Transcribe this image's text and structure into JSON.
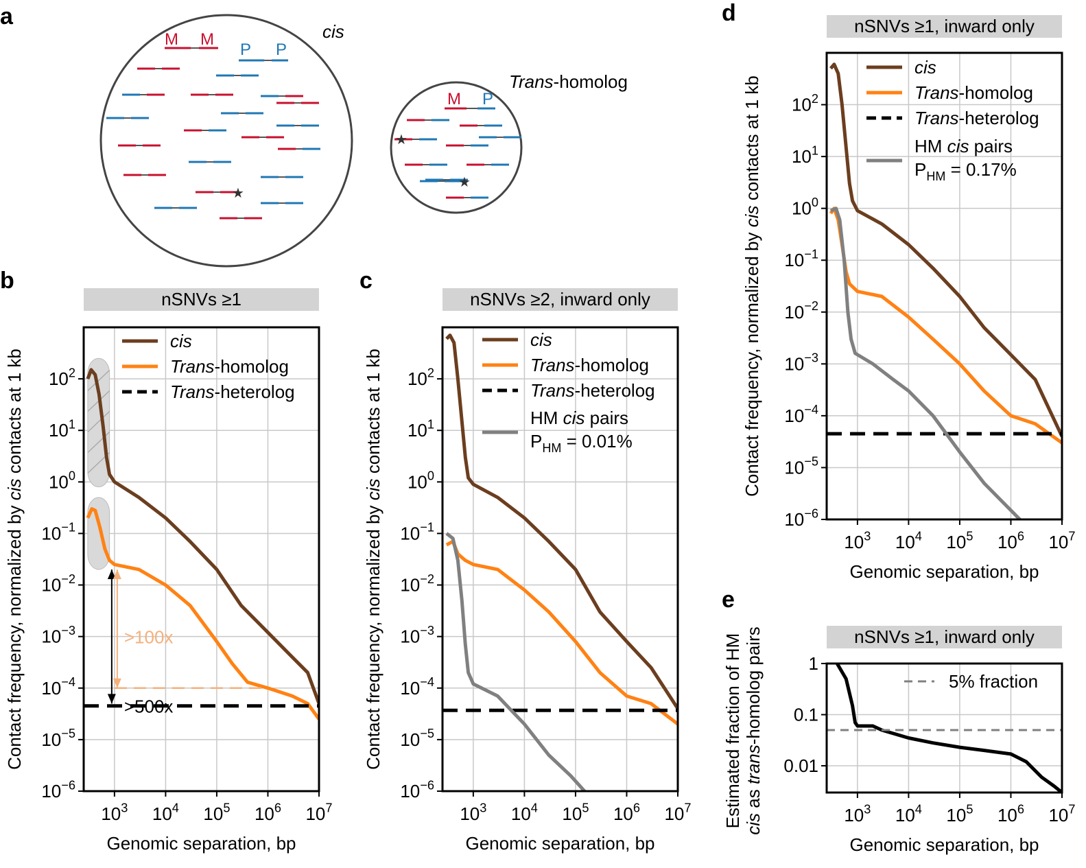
{
  "panel_letters": {
    "a": "a",
    "b": "b",
    "c": "c",
    "d": "d",
    "e": "e"
  },
  "panel_a": {
    "cis_label": "cis",
    "trans_label_italic": "Trans",
    "trans_label_rest": "-homolog",
    "m": "M",
    "p": "P"
  },
  "colors": {
    "cis": "#6b3e1f",
    "trans": "#ff8214",
    "hetero": "#000000",
    "hm": "#808080",
    "maternal": "#c8102e",
    "paternal": "#1f77b4",
    "grid": "#c8c8c8",
    "titlebar": "#d3d3d3"
  },
  "axis_text": {
    "ylabel_pre": "Contact frequency, normalized by ",
    "ylabel_it": "cis",
    "ylabel_post": " contacts at 1 kb",
    "xlabel": "Genomic separation, bp",
    "ylabel_e_line1": "Estimated fraction of HM",
    "ylabel_e_line2_it1": "cis",
    "ylabel_e_line2_mid": " as ",
    "ylabel_e_line2_it2": "trans",
    "ylabel_e_line2_post": "-homolog pairs"
  },
  "legend_text": {
    "cis": "cis",
    "trans_it": "Trans",
    "trans_rest": "-homolog",
    "hetero_it": "Trans",
    "hetero_rest": "-heterolog",
    "hm_pre": "HM ",
    "hm_it": "cis",
    "hm_post": " pairs",
    "p": "P",
    "hm_sub": "HM",
    "five_percent": "5% fraction"
  },
  "annotations": {
    "fold100": ">100x",
    "fold500": ">500x"
  },
  "chart_data": [
    {
      "panel": "b",
      "type": "line",
      "title": "nSNVs ≥1",
      "xlabel": "Genomic separation, bp",
      "ylabel": "Contact frequency, normalized by cis contacts at 1 kb",
      "xscale": "log",
      "yscale": "log",
      "xlim": [
        250,
        10000000
      ],
      "ylim": [
        1e-06,
        1000
      ],
      "xticks": [
        "10^3",
        "10^4",
        "10^5",
        "10^6",
        "10^7"
      ],
      "yticks": [
        "10^-6",
        "10^-5",
        "10^-4",
        "10^-3",
        "10^-2",
        "10^-1",
        "10^0",
        "10^1",
        "10^2"
      ],
      "series": [
        {
          "name": "cis",
          "points": [
            [
              300,
              100
            ],
            [
              350,
              150
            ],
            [
              420,
              120
            ],
            [
              500,
              50
            ],
            [
              600,
              12
            ],
            [
              700,
              3
            ],
            [
              800,
              1.4
            ],
            [
              1000,
              1
            ],
            [
              3000,
              0.5
            ],
            [
              10000,
              0.2
            ],
            [
              30000,
              0.07
            ],
            [
              100000,
              0.02
            ],
            [
              300000,
              0.004
            ],
            [
              1000000,
              0.0012
            ],
            [
              3000000,
              0.0004
            ],
            [
              6000000,
              0.0002
            ],
            [
              10000000,
              5e-05
            ]
          ]
        },
        {
          "name": "Trans-homolog",
          "points": [
            [
              300,
              0.2
            ],
            [
              360,
              0.3
            ],
            [
              420,
              0.28
            ],
            [
              520,
              0.13
            ],
            [
              650,
              0.05
            ],
            [
              800,
              0.03
            ],
            [
              1000,
              0.025
            ],
            [
              3000,
              0.02
            ],
            [
              10000,
              0.01
            ],
            [
              30000,
              0.004
            ],
            [
              100000,
              0.0008
            ],
            [
              200000,
              0.0003
            ],
            [
              400000,
              0.00013
            ],
            [
              1000000,
              0.0001
            ],
            [
              3000000,
              7e-05
            ],
            [
              6000000,
              5e-05
            ],
            [
              10000000,
              2.5e-05
            ]
          ]
        },
        {
          "name": "Trans-heterolog",
          "points": [
            [
              250,
              4.5e-05
            ],
            [
              10000000,
              4.5e-05
            ]
          ]
        }
      ],
      "legend": [
        "cis",
        "Trans-homolog",
        "Trans-heterolog"
      ],
      "annotations": [
        ">100x",
        ">500x"
      ]
    },
    {
      "panel": "c",
      "type": "line",
      "title": "nSNVs ≥2, inward only",
      "xlabel": "Genomic separation, bp",
      "ylabel": "Contact frequency, normalized by cis contacts at 1 kb",
      "xscale": "log",
      "yscale": "log",
      "xlim": [
        250,
        10000000
      ],
      "ylim": [
        1e-06,
        1000
      ],
      "series": [
        {
          "name": "cis",
          "points": [
            [
              300,
              600
            ],
            [
              350,
              700
            ],
            [
              420,
              500
            ],
            [
              500,
              100
            ],
            [
              600,
              15
            ],
            [
              700,
              3
            ],
            [
              800,
              1.2
            ],
            [
              1000,
              0.9
            ],
            [
              3000,
              0.5
            ],
            [
              10000,
              0.2
            ],
            [
              30000,
              0.07
            ],
            [
              100000,
              0.02
            ],
            [
              300000,
              0.003
            ],
            [
              1000000,
              0.0008
            ],
            [
              3000000,
              0.00025
            ],
            [
              10000000,
              4e-05
            ]
          ]
        },
        {
          "name": "Trans-homolog",
          "points": [
            [
              300,
              0.06
            ],
            [
              400,
              0.07
            ],
            [
              500,
              0.04
            ],
            [
              700,
              0.03
            ],
            [
              1000,
              0.025
            ],
            [
              3000,
              0.02
            ],
            [
              10000,
              0.008
            ],
            [
              30000,
              0.003
            ],
            [
              100000,
              0.0008
            ],
            [
              300000,
              0.0002
            ],
            [
              1000000,
              7e-05
            ],
            [
              3000000,
              5e-05
            ],
            [
              10000000,
              2e-05
            ]
          ]
        },
        {
          "name": "Trans-heterolog",
          "points": [
            [
              250,
              3.7e-05
            ],
            [
              10000000,
              3.7e-05
            ]
          ]
        },
        {
          "name": "HM cis pairs",
          "points": [
            [
              300,
              0.1
            ],
            [
              400,
              0.08
            ],
            [
              500,
              0.03
            ],
            [
              600,
              0.005
            ],
            [
              700,
              0.0007
            ],
            [
              800,
              0.0002
            ],
            [
              1000,
              0.00012
            ],
            [
              3000,
              7e-05
            ],
            [
              10000,
              2e-05
            ],
            [
              30000,
              5e-06
            ],
            [
              80000,
              2e-06
            ],
            [
              150000,
              1e-06
            ]
          ]
        }
      ],
      "legend": [
        "cis",
        "Trans-homolog",
        "Trans-heterolog",
        "HM cis pairs P_HM = 0.01%"
      ]
    },
    {
      "panel": "d",
      "type": "line",
      "title": "nSNVs ≥1, inward only",
      "xlabel": "Genomic separation, bp",
      "ylabel": "Contact frequency, normalized by cis contacts at 1 kb",
      "xscale": "log",
      "yscale": "log",
      "xlim": [
        250,
        10000000
      ],
      "ylim": [
        1e-06,
        1000
      ],
      "series": [
        {
          "name": "cis",
          "points": [
            [
              300,
              500
            ],
            [
              350,
              600
            ],
            [
              420,
              400
            ],
            [
              500,
              100
            ],
            [
              600,
              15
            ],
            [
              700,
              3
            ],
            [
              800,
              1.4
            ],
            [
              1000,
              0.9
            ],
            [
              3000,
              0.5
            ],
            [
              10000,
              0.2
            ],
            [
              30000,
              0.07
            ],
            [
              100000,
              0.02
            ],
            [
              300000,
              0.005
            ],
            [
              1000000,
              0.0015
            ],
            [
              3000000,
              0.0005
            ],
            [
              10000000,
              4e-05
            ]
          ]
        },
        {
          "name": "Trans-homolog",
          "points": [
            [
              300,
              0.8
            ],
            [
              350,
              1
            ],
            [
              420,
              0.6
            ],
            [
              500,
              0.2
            ],
            [
              600,
              0.06
            ],
            [
              700,
              0.035
            ],
            [
              1000,
              0.025
            ],
            [
              3000,
              0.02
            ],
            [
              10000,
              0.008
            ],
            [
              30000,
              0.003
            ],
            [
              100000,
              0.001
            ],
            [
              300000,
              0.0003
            ],
            [
              1000000,
              0.0001
            ],
            [
              3000000,
              7e-05
            ],
            [
              10000000,
              3e-05
            ]
          ]
        },
        {
          "name": "Trans-heterolog",
          "points": [
            [
              250,
              4.5e-05
            ],
            [
              10000000,
              4.5e-05
            ]
          ]
        },
        {
          "name": "HM cis pairs",
          "points": [
            [
              300,
              0.9
            ],
            [
              380,
              1
            ],
            [
              450,
              0.6
            ],
            [
              550,
              0.1
            ],
            [
              650,
              0.01
            ],
            [
              750,
              0.003
            ],
            [
              900,
              0.0016
            ],
            [
              2000,
              0.001
            ],
            [
              5000,
              0.0005
            ],
            [
              10000,
              0.0003
            ],
            [
              30000,
              0.0001
            ],
            [
              100000,
              2e-05
            ],
            [
              300000,
              5e-06
            ],
            [
              1000000,
              1.5e-06
            ],
            [
              1500000,
              1e-06
            ]
          ]
        }
      ],
      "legend": [
        "cis",
        "Trans-homolog",
        "Trans-heterolog",
        "HM cis pairs P_HM = 0.17%"
      ]
    },
    {
      "panel": "e",
      "type": "line",
      "title": "nSNVs ≥1, inward only",
      "xlabel": "Genomic separation, bp",
      "ylabel": "Estimated fraction of HM cis as trans-homolog pairs",
      "xscale": "log",
      "yscale": "log",
      "xlim": [
        250,
        10000000
      ],
      "ylim": [
        0.003,
        1
      ],
      "yticks": [
        "0.01",
        "0.1",
        "1"
      ],
      "series": [
        {
          "name": "Estimated fraction",
          "points": [
            [
              400,
              1
            ],
            [
              600,
              0.5
            ],
            [
              800,
              0.15
            ],
            [
              900,
              0.07
            ],
            [
              1000,
              0.06
            ],
            [
              2000,
              0.06
            ],
            [
              3000,
              0.05
            ],
            [
              10000,
              0.035
            ],
            [
              30000,
              0.028
            ],
            [
              100000,
              0.023
            ],
            [
              300000,
              0.02
            ],
            [
              1000000,
              0.017
            ],
            [
              2000000,
              0.012
            ],
            [
              4000000,
              0.006
            ],
            [
              7000000,
              0.004
            ],
            [
              10000000,
              0.003
            ]
          ]
        },
        {
          "name": "5% fraction",
          "points": [
            [
              250,
              0.05
            ],
            [
              10000000,
              0.05
            ]
          ]
        }
      ],
      "legend": [
        "5% fraction"
      ]
    }
  ]
}
